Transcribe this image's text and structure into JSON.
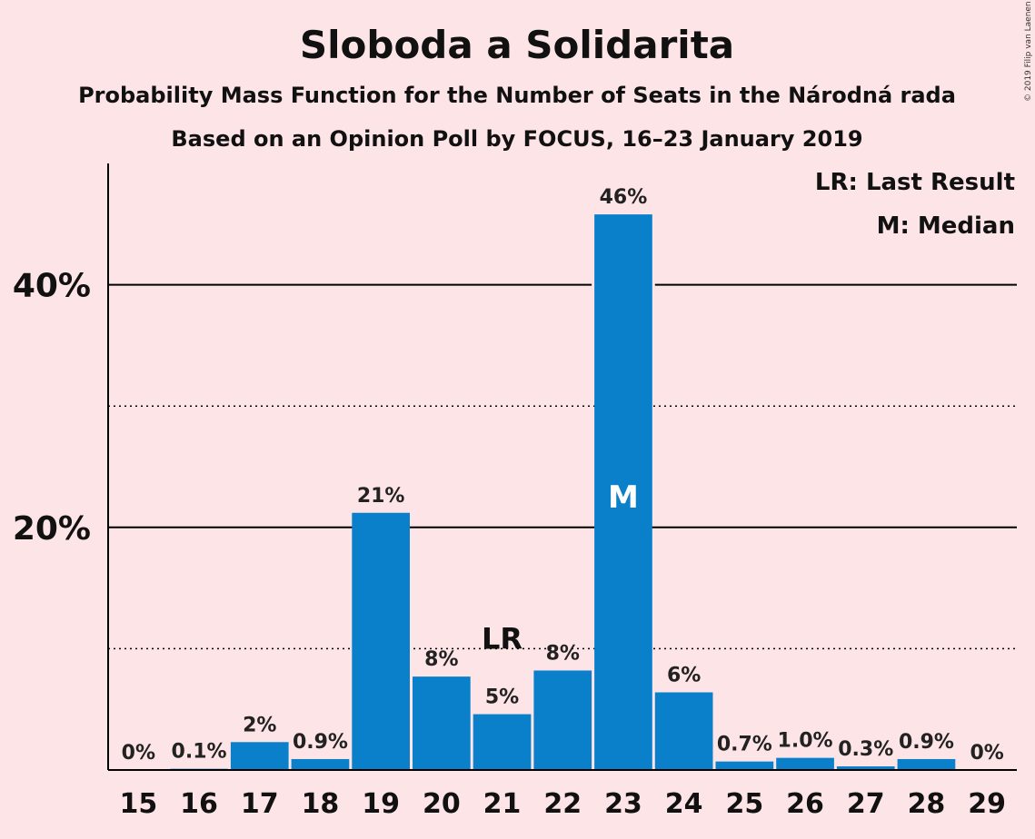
{
  "colors": {
    "background": "#FDE4E6",
    "bar": "#0A80CB",
    "median_label": "#FFFFFF"
  },
  "chart_data": {
    "type": "bar",
    "title": "Sloboda a Solidarita",
    "subtitle": "Probability Mass Function for the Number of Seats in the Národná rada",
    "subtitle2": "Based on an Opinion Poll by FOCUS, 16–23 January 2019",
    "credit": "© 2019 Filip van Laenen",
    "categories": [
      "15",
      "16",
      "17",
      "18",
      "19",
      "20",
      "21",
      "22",
      "23",
      "24",
      "25",
      "26",
      "27",
      "28",
      "29"
    ],
    "values": [
      0,
      0.1,
      2.3,
      0.9,
      21.2,
      7.7,
      4.6,
      8.2,
      45.8,
      6.4,
      0.7,
      1.0,
      0.3,
      0.9,
      0
    ],
    "value_labels": [
      "0%",
      "0.1%",
      "2%",
      "0.9%",
      "21%",
      "8%",
      "5%",
      "8%",
      "46%",
      "6%",
      "0.7%",
      "1.0%",
      "0.3%",
      "0.9%",
      "0%"
    ],
    "ylim": [
      0,
      50
    ],
    "yticks": [
      {
        "value": 20,
        "label": "20%"
      },
      {
        "value": 40,
        "label": "40%"
      }
    ],
    "minor_gridlines": [
      10,
      30
    ],
    "last_result": {
      "category": "21",
      "label": "LR"
    },
    "median": {
      "category": "23",
      "label": "M"
    },
    "legend": {
      "position": "top-right",
      "items": [
        "LR: Last Result",
        "M: Median"
      ]
    }
  }
}
